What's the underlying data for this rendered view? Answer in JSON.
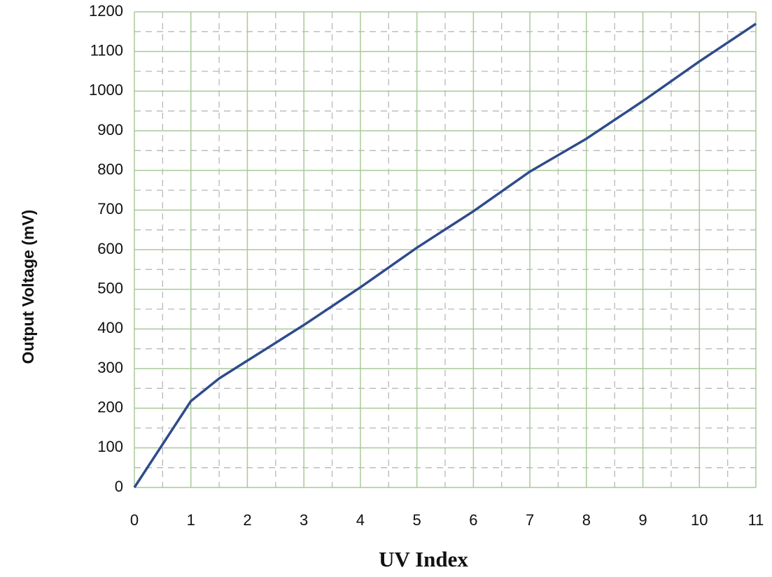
{
  "chart_data": {
    "type": "line",
    "xlabel": "UV Index",
    "ylabel": "Output Voltage (mV)",
    "x": [
      0,
      1,
      1.5,
      2,
      3,
      4,
      5,
      6,
      7,
      8,
      9,
      10,
      11
    ],
    "series": [
      {
        "color": "#2f4b8c",
        "values": [
          0,
          218,
          275,
          320,
          410,
          505,
          605,
          697,
          797,
          880,
          975,
          1075,
          1170
        ]
      }
    ],
    "xlim": [
      0,
      11
    ],
    "xticks": [
      0,
      1,
      2,
      3,
      4,
      5,
      6,
      7,
      8,
      9,
      10,
      11
    ],
    "ylim": [
      0,
      1200
    ],
    "yticks": [
      0,
      100,
      200,
      300,
      400,
      500,
      600,
      700,
      800,
      900,
      1000,
      1100,
      1200
    ],
    "grid": true,
    "minor_grid": true
  }
}
